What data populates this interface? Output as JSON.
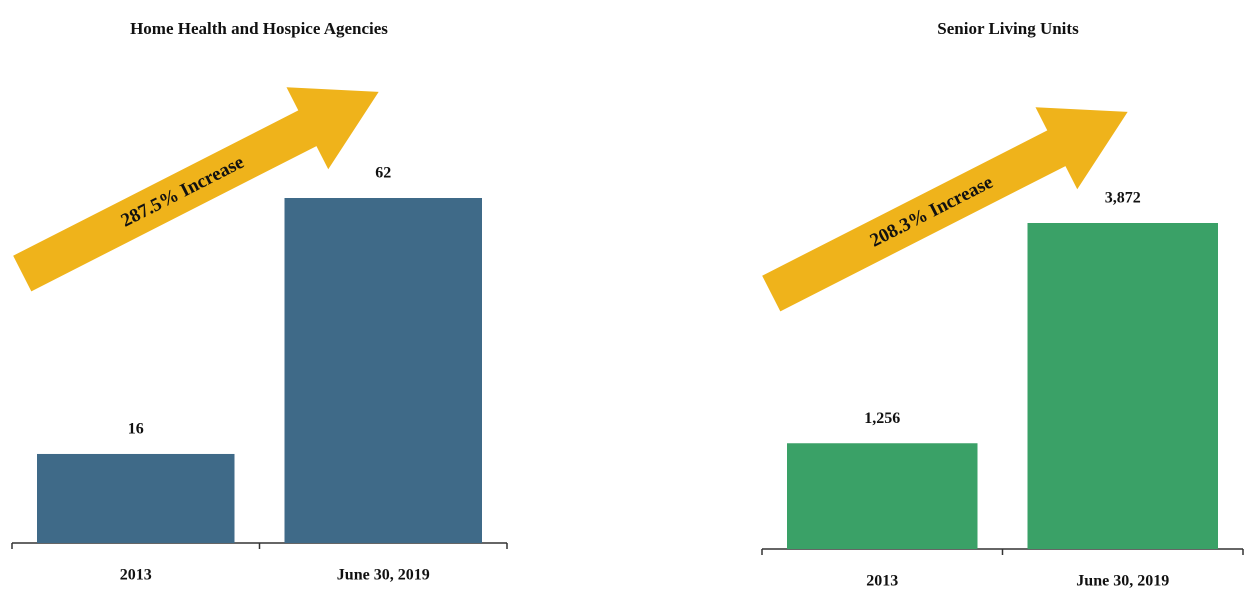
{
  "chart_data": [
    {
      "type": "bar",
      "title": "Home Health and Hospice Agencies",
      "annotation": "287.5% Increase",
      "categories": [
        "2013",
        "June 30, 2019"
      ],
      "values": [
        16,
        62
      ],
      "value_labels": [
        "16",
        "62"
      ],
      "color": "#3f6a88"
    },
    {
      "type": "bar",
      "title": "Senior Living Units",
      "annotation": "208.3% Increase",
      "categories": [
        "2013",
        "June 30, 2019"
      ],
      "values": [
        1256,
        3872
      ],
      "value_labels": [
        "1,256",
        "3,872"
      ],
      "color": "#3aa167"
    }
  ]
}
